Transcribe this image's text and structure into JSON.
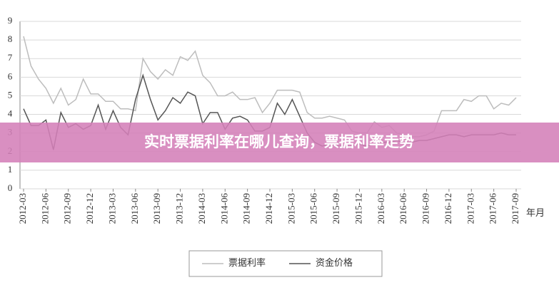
{
  "chart_data": {
    "type": "line",
    "title": "实时票据利率在哪儿查询，票据利率走势",
    "x_label": "年月",
    "categories": [
      "2012-03",
      null,
      null,
      "2012-06",
      null,
      null,
      "2012-09",
      null,
      null,
      "2012-12",
      null,
      null,
      "2013-03",
      null,
      null,
      "2013-06",
      null,
      null,
      "2013-09",
      null,
      null,
      "2013-12",
      null,
      null,
      "2014-03",
      null,
      null,
      "2014-06",
      null,
      null,
      "2014-09",
      null,
      null,
      "2014-12",
      null,
      null,
      "2015-03",
      null,
      null,
      "2015-06",
      null,
      null,
      "2015-09",
      null,
      null,
      "2015-12",
      null,
      null,
      "2016-03",
      null,
      null,
      "2016-06",
      null,
      null,
      "2016-09",
      null,
      null,
      "2016-12",
      null,
      null,
      "2017-03",
      null,
      null,
      "2017-06",
      null,
      null,
      "2017-09"
    ],
    "series": [
      {
        "name": "票据利率",
        "color": "#bdbdbd",
        "values": [
          8.2,
          6.6,
          5.9,
          5.4,
          4.6,
          5.4,
          4.5,
          4.8,
          5.9,
          5.1,
          5.1,
          4.7,
          4.7,
          4.3,
          4.3,
          4.2,
          7.0,
          6.3,
          5.9,
          6.4,
          6.1,
          7.1,
          6.9,
          7.4,
          6.1,
          5.7,
          5.0,
          5.0,
          5.2,
          4.8,
          4.8,
          4.9,
          4.1,
          4.6,
          5.3,
          5.3,
          5.3,
          5.2,
          4.1,
          3.8,
          3.8,
          3.9,
          3.8,
          3.7,
          3.1,
          3.0,
          3.0,
          3.6,
          3.3,
          3.4,
          3.0,
          2.9,
          2.8,
          2.8,
          2.9,
          3.1,
          4.2,
          4.2,
          4.2,
          4.8,
          4.7,
          5.0,
          5.0,
          4.3,
          4.6,
          4.5,
          4.9
        ]
      },
      {
        "name": "资金价格",
        "color": "#555555",
        "values": [
          4.3,
          3.4,
          3.4,
          3.7,
          2.1,
          4.1,
          3.3,
          3.5,
          3.2,
          3.4,
          4.5,
          3.2,
          4.2,
          3.3,
          2.9,
          4.8,
          6.1,
          4.8,
          3.7,
          4.2,
          4.9,
          4.6,
          5.2,
          5.0,
          3.5,
          4.1,
          4.1,
          3.2,
          3.8,
          3.9,
          3.7,
          3.1,
          3.1,
          3.3,
          4.6,
          4.0,
          4.8,
          3.9,
          3.0,
          2.5,
          2.3,
          2.4,
          2.3,
          2.3,
          2.3,
          2.4,
          2.3,
          2.4,
          2.5,
          2.5,
          2.6,
          2.5,
          2.5,
          2.6,
          2.6,
          2.7,
          2.8,
          2.9,
          2.9,
          2.8,
          2.9,
          2.9,
          2.9,
          2.9,
          3.0,
          2.9,
          2.9
        ]
      }
    ],
    "ylim": [
      0,
      9
    ],
    "yticks": [
      0,
      1,
      2,
      3,
      4,
      5,
      6,
      7,
      8,
      9
    ],
    "grid": true
  }
}
